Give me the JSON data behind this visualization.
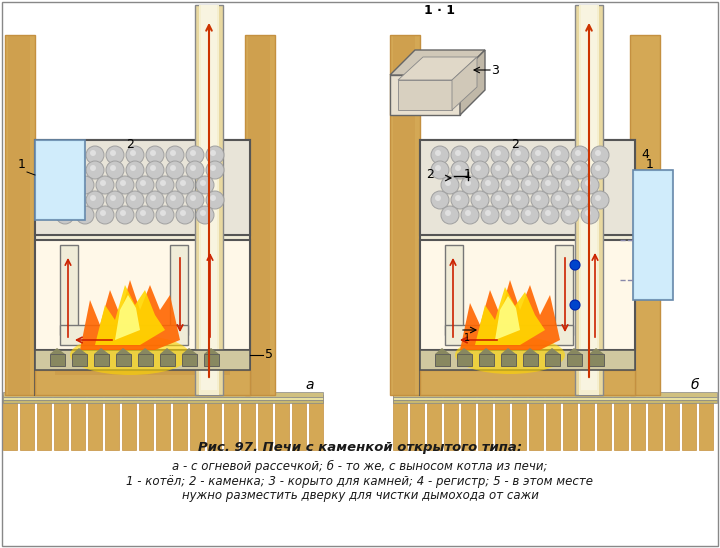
{
  "title_line1": "Рис. 97. Печи с каменкой открытого типа:",
  "title_line2": "а - с огневой рассечкой; б - то же, с выносом котла из печи;",
  "title_line3": "1 - котёл; 2 - каменка; 3 - корыто для камней; 4 - регистр; 5 - в этом месте",
  "title_line4": "нужно разместить дверку для чистки дымохода от сажи",
  "bg_color": "#FFFFFF",
  "wood_color": "#D4A855",
  "wood_dark": "#C49040",
  "stone_color": "#A0A0A0",
  "stone_light": "#C8C8C8",
  "fire_orange": "#FF6600",
  "fire_yellow": "#FFD700",
  "fire_red": "#CC2200",
  "pipe_color": "#E8D8A0",
  "pipe_inner": "#F5EFD0",
  "inner_wall": "#F0ECD8",
  "metal_color": "#B8B8C8",
  "water_color": "#C8E8F8",
  "label_a": "а",
  "label_b": "б"
}
